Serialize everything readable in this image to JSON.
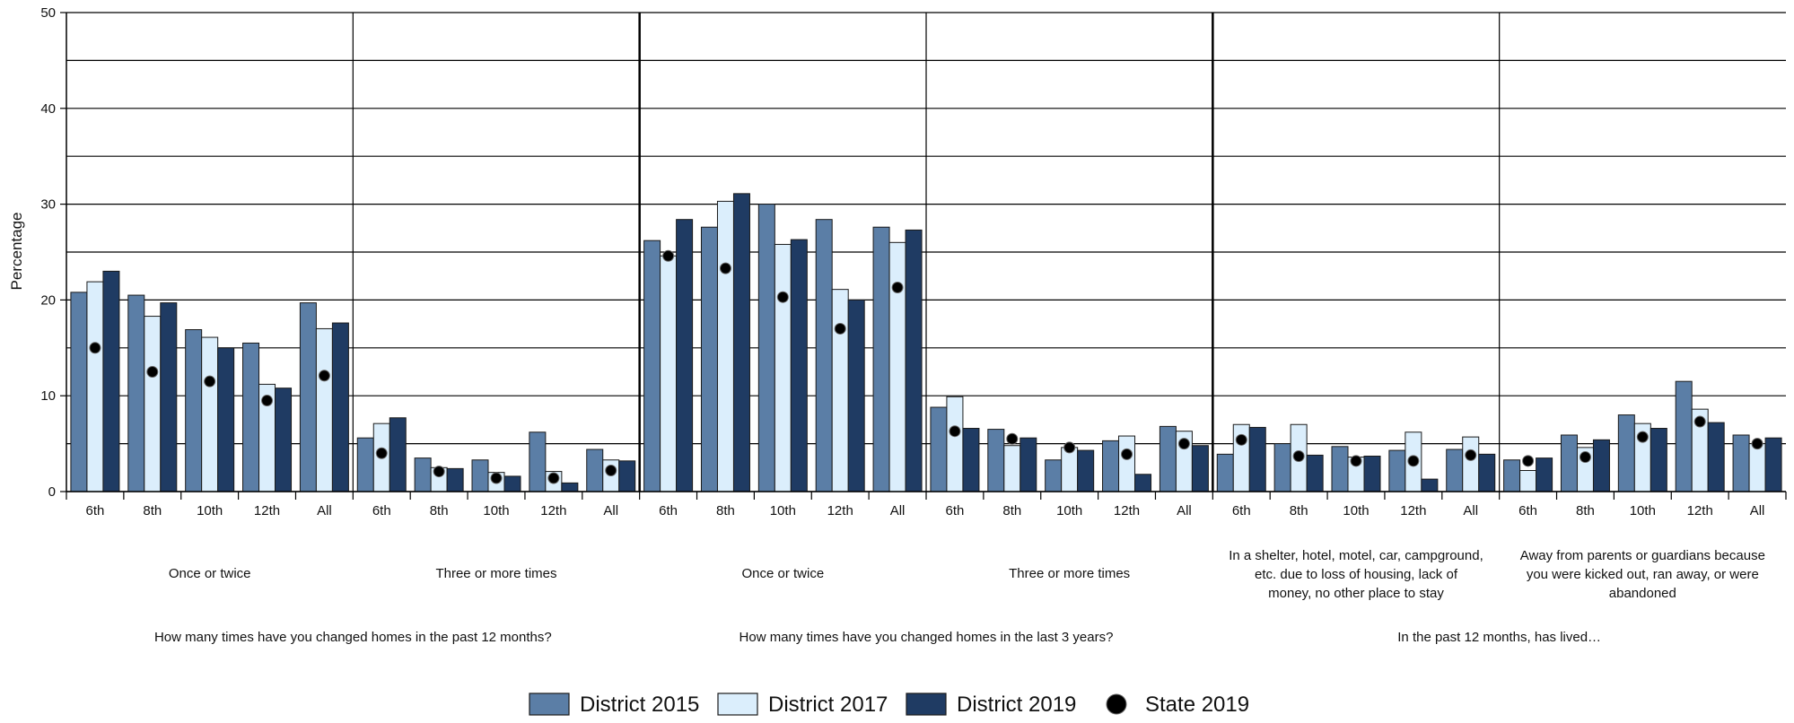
{
  "chart_data": {
    "type": "bar",
    "ylabel": "Percentage",
    "ylim": [
      0,
      50
    ],
    "yticks": [
      0,
      10,
      20,
      30,
      40,
      50
    ],
    "grid": true,
    "legend_position": "bottom-center",
    "legend": [
      {
        "name": "District 2015",
        "color": "#5b7ea6",
        "kind": "bar"
      },
      {
        "name": "District 2017",
        "color": "#dbeefc",
        "kind": "bar"
      },
      {
        "name": "District 2019",
        "color": "#1f3b63",
        "kind": "bar"
      },
      {
        "name": "State 2019",
        "color": "#000000",
        "kind": "marker"
      }
    ],
    "categories": [
      "6th",
      "8th",
      "10th",
      "12th",
      "All"
    ],
    "sections": [
      {
        "label": "How many times have you changed homes in the past 12 months?",
        "groups": [
          {
            "label": [
              "Once or twice"
            ],
            "values": [
              [
                20.8,
                21.9,
                23.0,
                15.0
              ],
              [
                20.5,
                18.3,
                19.7,
                12.5
              ],
              [
                16.9,
                16.1,
                15.0,
                11.5
              ],
              [
                15.5,
                11.2,
                10.8,
                9.5
              ],
              [
                19.7,
                17.0,
                17.6,
                12.1
              ]
            ]
          },
          {
            "label": [
              "Three or more times"
            ],
            "values": [
              [
                5.6,
                7.1,
                7.7,
                4.0
              ],
              [
                3.5,
                2.5,
                2.4,
                2.1
              ],
              [
                3.3,
                2.0,
                1.6,
                1.4
              ],
              [
                6.2,
                2.1,
                0.9,
                1.4
              ],
              [
                4.4,
                3.3,
                3.2,
                2.2
              ]
            ]
          }
        ]
      },
      {
        "label": "How many times have you changed homes in the last 3 years?",
        "groups": [
          {
            "label": [
              "Once or twice"
            ],
            "values": [
              [
                26.2,
                24.6,
                28.4,
                24.6
              ],
              [
                27.6,
                30.3,
                31.1,
                23.3
              ],
              [
                30.0,
                25.8,
                26.3,
                20.3
              ],
              [
                28.4,
                21.1,
                20.0,
                17.0
              ],
              [
                27.6,
                26.0,
                27.3,
                21.3
              ]
            ]
          },
          {
            "label": [
              "Three or more times"
            ],
            "values": [
              [
                8.8,
                9.9,
                6.6,
                6.3
              ],
              [
                6.5,
                4.8,
                5.6,
                5.5
              ],
              [
                3.3,
                4.6,
                4.3,
                4.6
              ],
              [
                5.3,
                5.8,
                1.8,
                3.9
              ],
              [
                6.8,
                6.3,
                4.8,
                5.0
              ]
            ]
          }
        ]
      },
      {
        "label": "In the past 12 months, has lived…",
        "groups": [
          {
            "label": [
              "In a shelter, hotel, motel, car, campground,",
              "etc. due to loss of housing, lack of",
              "money, no other place to stay"
            ],
            "values": [
              [
                3.9,
                7.0,
                6.7,
                5.4
              ],
              [
                5.0,
                7.0,
                3.8,
                3.7
              ],
              [
                4.7,
                3.6,
                3.7,
                3.2
              ],
              [
                4.3,
                6.2,
                1.3,
                3.2
              ],
              [
                4.4,
                5.7,
                3.9,
                3.8
              ]
            ]
          },
          {
            "label": [
              "Away from parents or guardians because",
              "you were kicked out, ran away, or were",
              "abandoned"
            ],
            "values": [
              [
                3.3,
                2.2,
                3.5,
                3.2
              ],
              [
                5.9,
                4.6,
                5.4,
                3.6
              ],
              [
                8.0,
                7.1,
                6.6,
                5.7
              ],
              [
                11.5,
                8.6,
                7.2,
                7.3
              ],
              [
                5.9,
                5.0,
                5.6,
                5.0
              ]
            ]
          }
        ]
      }
    ]
  }
}
